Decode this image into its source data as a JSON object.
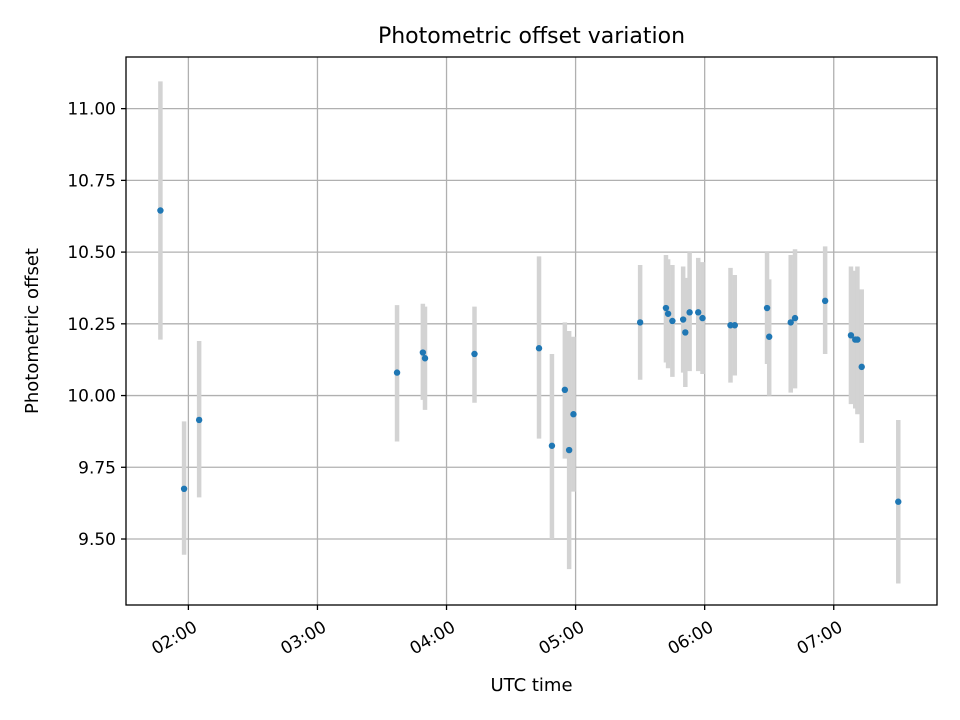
{
  "chart_data": {
    "type": "scatter",
    "title": "Photometric offset variation",
    "xlabel": "UTC time",
    "ylabel": "Photometric offset",
    "x_unit": "UTC time of day (HH:MM)",
    "xlim": [
      "01:31",
      "07:48"
    ],
    "ylim": [
      9.27,
      11.18
    ],
    "x_ticks": [
      "02:00",
      "03:00",
      "04:00",
      "05:00",
      "06:00",
      "07:00"
    ],
    "x_tick_rotation_deg": 30,
    "y_ticks": [
      "9.50",
      "9.75",
      "10.00",
      "10.25",
      "10.50",
      "10.75",
      "11.00"
    ],
    "grid": true,
    "legend": "none",
    "colors": {
      "points": "#1f77b4",
      "error_bars": "#d3d3d3",
      "grid": "#b0b0b0"
    },
    "series": [
      {
        "points": [
          {
            "x": "01:47",
            "y": 10.645,
            "lo": 10.195,
            "hi": 11.095
          },
          {
            "x": "01:58",
            "y": 9.675,
            "lo": 9.445,
            "hi": 9.91
          },
          {
            "x": "02:05",
            "y": 9.915,
            "lo": 9.645,
            "hi": 10.19
          },
          {
            "x": "03:37",
            "y": 10.08,
            "lo": 9.84,
            "hi": 10.315
          },
          {
            "x": "03:49",
            "y": 10.15,
            "lo": 9.985,
            "hi": 10.32
          },
          {
            "x": "03:50",
            "y": 10.13,
            "lo": 9.95,
            "hi": 10.31
          },
          {
            "x": "04:13",
            "y": 10.145,
            "lo": 9.975,
            "hi": 10.31
          },
          {
            "x": "04:43",
            "y": 10.165,
            "lo": 9.85,
            "hi": 10.485
          },
          {
            "x": "04:49",
            "y": 9.825,
            "lo": 9.5,
            "hi": 10.145
          },
          {
            "x": "04:55",
            "y": 10.02,
            "lo": 9.78,
            "hi": 10.255
          },
          {
            "x": "04:57",
            "y": 9.81,
            "lo": 9.395,
            "hi": 10.225
          },
          {
            "x": "04:59",
            "y": 9.935,
            "lo": 9.665,
            "hi": 10.205
          },
          {
            "x": "05:30",
            "y": 10.255,
            "lo": 10.055,
            "hi": 10.455
          },
          {
            "x": "05:42",
            "y": 10.305,
            "lo": 10.115,
            "hi": 10.49
          },
          {
            "x": "05:43",
            "y": 10.285,
            "lo": 10.095,
            "hi": 10.475
          },
          {
            "x": "05:45",
            "y": 10.26,
            "lo": 10.065,
            "hi": 10.455
          },
          {
            "x": "05:50",
            "y": 10.265,
            "lo": 10.08,
            "hi": 10.45
          },
          {
            "x": "05:51",
            "y": 10.22,
            "lo": 10.03,
            "hi": 10.41
          },
          {
            "x": "05:53",
            "y": 10.29,
            "lo": 10.085,
            "hi": 10.5
          },
          {
            "x": "05:57",
            "y": 10.29,
            "lo": 10.085,
            "hi": 10.48
          },
          {
            "x": "05:59",
            "y": 10.27,
            "lo": 10.075,
            "hi": 10.465
          },
          {
            "x": "06:12",
            "y": 10.245,
            "lo": 10.045,
            "hi": 10.445
          },
          {
            "x": "06:14",
            "y": 10.245,
            "lo": 10.07,
            "hi": 10.42
          },
          {
            "x": "06:29",
            "y": 10.305,
            "lo": 10.11,
            "hi": 10.5
          },
          {
            "x": "06:30",
            "y": 10.205,
            "lo": 10.0,
            "hi": 10.405
          },
          {
            "x": "06:40",
            "y": 10.255,
            "lo": 10.01,
            "hi": 10.49
          },
          {
            "x": "06:42",
            "y": 10.27,
            "lo": 10.025,
            "hi": 10.51
          },
          {
            "x": "06:56",
            "y": 10.33,
            "lo": 10.145,
            "hi": 10.52
          },
          {
            "x": "07:08",
            "y": 10.21,
            "lo": 9.97,
            "hi": 10.45
          },
          {
            "x": "07:10",
            "y": 10.195,
            "lo": 9.955,
            "hi": 10.435
          },
          {
            "x": "07:11",
            "y": 10.195,
            "lo": 9.935,
            "hi": 10.45
          },
          {
            "x": "07:13",
            "y": 10.1,
            "lo": 9.835,
            "hi": 10.37
          },
          {
            "x": "07:30",
            "y": 9.63,
            "lo": 9.345,
            "hi": 9.915
          }
        ]
      }
    ]
  }
}
